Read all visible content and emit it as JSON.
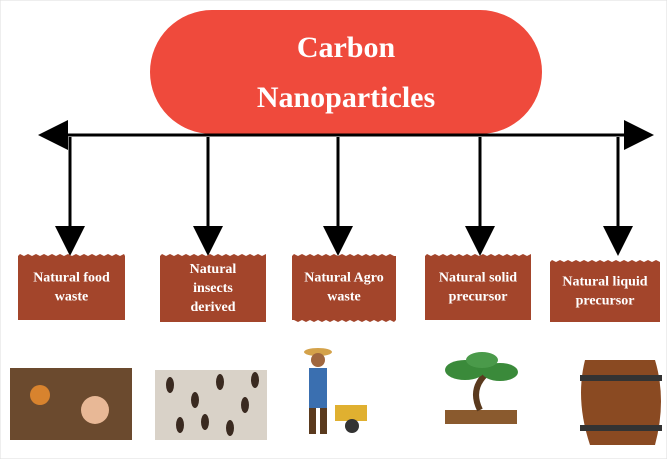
{
  "title": {
    "lines": [
      "Carbon",
      "Nanoparticles"
    ]
  },
  "nodes": [
    {
      "lines": [
        "Natural food",
        "waste"
      ]
    },
    {
      "lines": [
        "Natural",
        "insects",
        "derived"
      ]
    },
    {
      "lines": [
        "Natural Agro",
        "waste"
      ]
    },
    {
      "lines": [
        "Natural solid",
        "precursor"
      ]
    },
    {
      "lines": [
        "Natural liquid",
        "precursor"
      ]
    }
  ]
}
